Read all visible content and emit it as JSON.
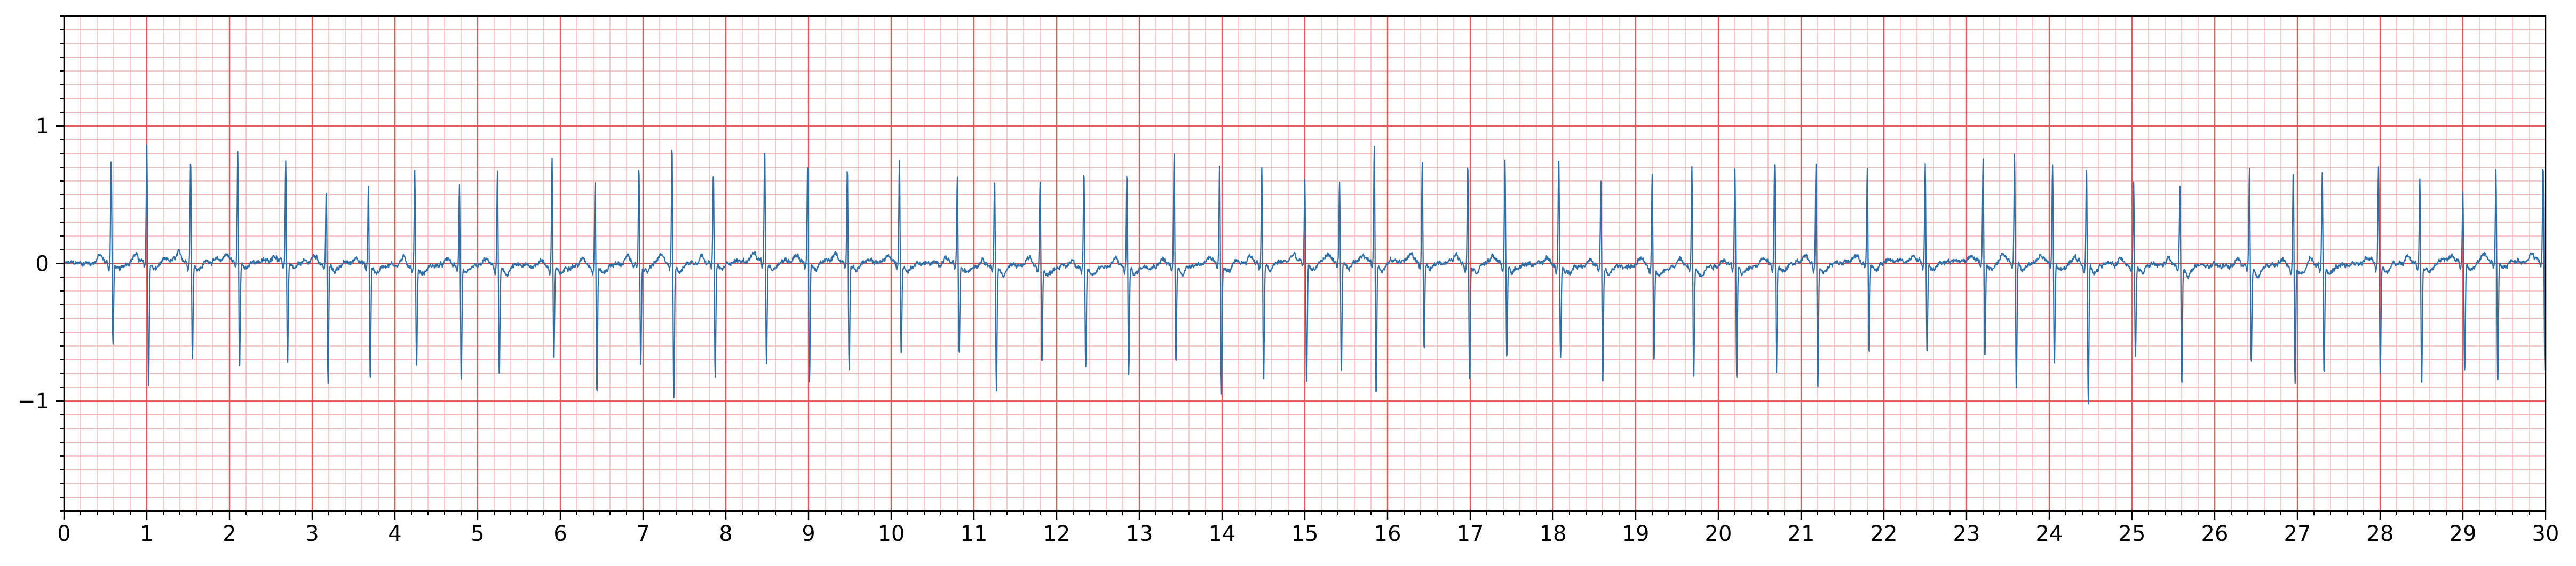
{
  "chart_data": {
    "type": "line",
    "title": "",
    "xlabel": "",
    "ylabel": "",
    "xlim": [
      0,
      30
    ],
    "ylim": [
      -1.8,
      1.8
    ],
    "x_ticks": [
      0,
      1,
      2,
      3,
      4,
      5,
      6,
      7,
      8,
      9,
      10,
      11,
      12,
      13,
      14,
      15,
      16,
      17,
      18,
      19,
      20,
      21,
      22,
      23,
      24,
      25,
      26,
      27,
      28,
      29,
      30
    ],
    "x_tick_labels": [
      "0",
      "1",
      "2",
      "3",
      "4",
      "5",
      "6",
      "7",
      "8",
      "9",
      "10",
      "11",
      "12",
      "13",
      "14",
      "15",
      "16",
      "17",
      "18",
      "19",
      "20",
      "21",
      "22",
      "23",
      "24",
      "25",
      "26",
      "27",
      "28",
      "29",
      "30"
    ],
    "y_ticks": [
      -1,
      0,
      1
    ],
    "y_tick_labels": [
      "−1",
      "0",
      "1"
    ],
    "grid": {
      "major_x_step": 1,
      "major_y_step": 1,
      "minor_x_step": 0.2,
      "minor_y_step": 0.1,
      "major_color": "#e8585a",
      "minor_color": "#f7b6b6"
    },
    "series_color": "#2f6fa8",
    "baseline_color": "#c0504d",
    "beats": [
      {
        "t": 0.57,
        "r": 0.78,
        "s": -0.6
      },
      {
        "t": 1.0,
        "r": 0.86,
        "s": -0.92
      },
      {
        "t": 1.53,
        "r": 0.76,
        "s": -0.7
      },
      {
        "t": 2.1,
        "r": 0.83,
        "s": -0.77
      },
      {
        "t": 2.68,
        "r": 0.75,
        "s": -0.74
      },
      {
        "t": 3.17,
        "r": 0.54,
        "s": -0.88
      },
      {
        "t": 3.68,
        "r": 0.57,
        "s": -0.84
      },
      {
        "t": 4.24,
        "r": 0.69,
        "s": -0.73
      },
      {
        "t": 4.78,
        "r": 0.61,
        "s": -0.83
      },
      {
        "t": 5.24,
        "r": 0.7,
        "s": -0.8
      },
      {
        "t": 5.9,
        "r": 0.79,
        "s": -0.69
      },
      {
        "t": 6.42,
        "r": 0.62,
        "s": -0.94
      },
      {
        "t": 6.95,
        "r": 0.71,
        "s": -0.72
      },
      {
        "t": 7.35,
        "r": 0.85,
        "s": -0.98
      },
      {
        "t": 7.85,
        "r": 0.65,
        "s": -0.84
      },
      {
        "t": 8.47,
        "r": 0.82,
        "s": -0.74
      },
      {
        "t": 8.99,
        "r": 0.71,
        "s": -0.88
      },
      {
        "t": 9.47,
        "r": 0.71,
        "s": -0.76
      },
      {
        "t": 10.1,
        "r": 0.78,
        "s": -0.67
      },
      {
        "t": 10.8,
        "r": 0.64,
        "s": -0.66
      },
      {
        "t": 11.25,
        "r": 0.63,
        "s": -0.9
      },
      {
        "t": 11.8,
        "r": 0.62,
        "s": -0.72
      },
      {
        "t": 12.33,
        "r": 0.69,
        "s": -0.74
      },
      {
        "t": 12.85,
        "r": 0.68,
        "s": -0.8
      },
      {
        "t": 13.42,
        "r": 0.8,
        "s": -0.7
      },
      {
        "t": 13.97,
        "r": 0.75,
        "s": -0.93
      },
      {
        "t": 14.48,
        "r": 0.71,
        "s": -0.88
      },
      {
        "t": 15.0,
        "r": 0.61,
        "s": -0.91
      },
      {
        "t": 15.42,
        "r": 0.58,
        "s": -0.83
      },
      {
        "t": 15.84,
        "r": 0.87,
        "s": -0.98
      },
      {
        "t": 16.42,
        "r": 0.73,
        "s": -0.64
      },
      {
        "t": 16.97,
        "r": 0.73,
        "s": -0.82
      },
      {
        "t": 17.42,
        "r": 0.76,
        "s": -0.69
      },
      {
        "t": 18.07,
        "r": 0.8,
        "s": -0.68
      },
      {
        "t": 18.58,
        "r": 0.61,
        "s": -0.86
      },
      {
        "t": 19.2,
        "r": 0.69,
        "s": -0.68
      },
      {
        "t": 19.68,
        "r": 0.73,
        "s": -0.82
      },
      {
        "t": 20.2,
        "r": 0.73,
        "s": -0.83
      },
      {
        "t": 20.68,
        "r": 0.76,
        "s": -0.8
      },
      {
        "t": 21.18,
        "r": 0.74,
        "s": -0.92
      },
      {
        "t": 21.8,
        "r": 0.68,
        "s": -0.68
      },
      {
        "t": 22.5,
        "r": 0.71,
        "s": -0.67
      },
      {
        "t": 23.2,
        "r": 0.73,
        "s": -0.7
      },
      {
        "t": 23.58,
        "r": 0.79,
        "s": -0.94
      },
      {
        "t": 24.04,
        "r": 0.71,
        "s": -0.76
      },
      {
        "t": 24.45,
        "r": 0.71,
        "s": -1.03
      },
      {
        "t": 25.02,
        "r": 0.61,
        "s": -0.68
      },
      {
        "t": 25.58,
        "r": 0.59,
        "s": -0.88
      },
      {
        "t": 26.42,
        "r": 0.71,
        "s": -0.72
      },
      {
        "t": 26.95,
        "r": 0.71,
        "s": -0.86
      },
      {
        "t": 27.3,
        "r": 0.7,
        "s": -0.79
      },
      {
        "t": 27.98,
        "r": 0.71,
        "s": -0.82
      },
      {
        "t": 28.48,
        "r": 0.62,
        "s": -0.9
      },
      {
        "t": 29.0,
        "r": 0.52,
        "s": -0.8
      },
      {
        "t": 29.4,
        "r": 0.68,
        "s": -0.89
      },
      {
        "t": 29.97,
        "r": 0.71,
        "s": -0.78
      }
    ]
  }
}
